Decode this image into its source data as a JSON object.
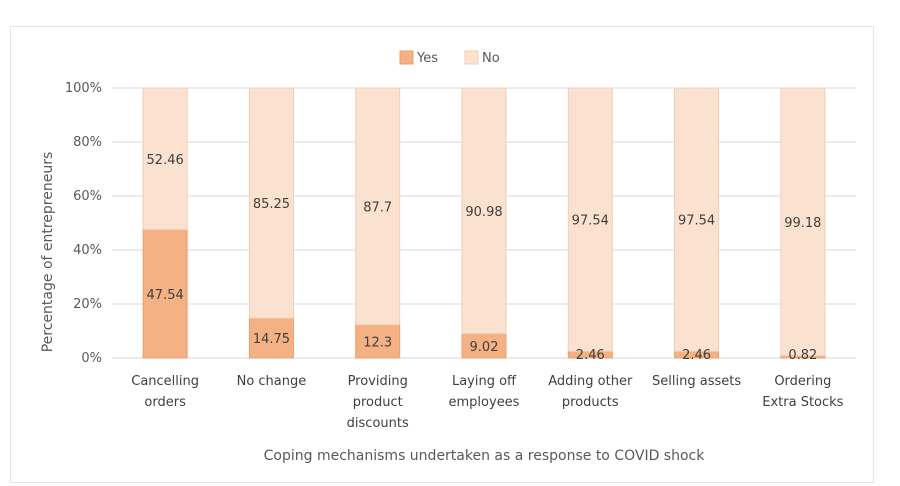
{
  "chart_data": {
    "type": "bar",
    "stacked": true,
    "percent_scale": true,
    "title": "",
    "xlabel": "Coping mechanisms undertaken as a response to COVID shock",
    "ylabel": "Percentage of entrepreneurs",
    "ylim": [
      0,
      100
    ],
    "yticks": [
      "0%",
      "20%",
      "40%",
      "60%",
      "80%",
      "100%"
    ],
    "grid": true,
    "legend_position": "top-center",
    "categories": [
      [
        "Cancelling",
        "orders"
      ],
      [
        "No change"
      ],
      [
        "Providing",
        "product",
        "discounts"
      ],
      [
        "Laying off",
        "employees"
      ],
      [
        "Adding other",
        "products"
      ],
      [
        "Selling assets"
      ],
      [
        "Ordering",
        "Extra Stocks"
      ]
    ],
    "series": [
      {
        "name": "Yes",
        "color": "#f4b183",
        "stroke": "#e8a070",
        "values": [
          47.54,
          14.75,
          12.3,
          9.02,
          2.46,
          2.46,
          0.82
        ]
      },
      {
        "name": "No",
        "color": "#fbe1cf",
        "stroke": "#f1cdb4",
        "values": [
          52.46,
          85.25,
          87.7,
          90.98,
          97.54,
          97.54,
          99.18
        ]
      }
    ]
  }
}
